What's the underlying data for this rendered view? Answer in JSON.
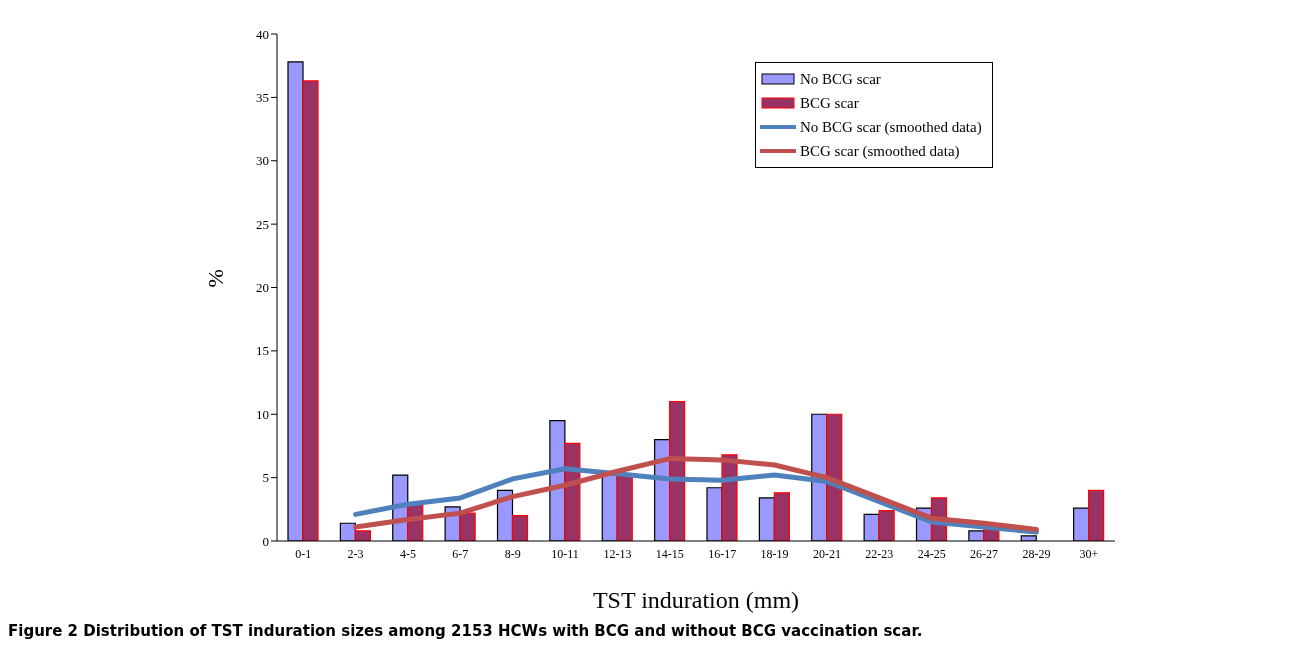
{
  "chart_data": {
    "type": "bar",
    "xlabel": "TST induration (mm)",
    "ylabel": "%",
    "categories": [
      "0-1",
      "2-3",
      "4-5",
      "6-7",
      "8-9",
      "10-11",
      "12-13",
      "14-15",
      "16-17",
      "18-19",
      "20-21",
      "22-23",
      "24-25",
      "26-27",
      "28-29",
      "30+"
    ],
    "series": [
      {
        "name": "No BCG scar",
        "color": "#9999ff",
        "values": [
          37.8,
          1.4,
          5.2,
          2.7,
          4.0,
          9.5,
          5.3,
          8.0,
          4.2,
          3.4,
          10.0,
          2.1,
          2.6,
          0.8,
          0.4,
          2.6
        ]
      },
      {
        "name": "BCG scar",
        "color": "#993366",
        "values": [
          36.3,
          0.8,
          2.9,
          2.2,
          2.0,
          7.7,
          5.1,
          11.0,
          6.8,
          3.8,
          10.0,
          2.4,
          3.4,
          0.9,
          null,
          4.0
        ]
      },
      {
        "name": "No BCG scar (smoothed data)",
        "type": "line",
        "color": "#4f81bd",
        "values": [
          null,
          2.1,
          2.9,
          3.4,
          4.9,
          5.7,
          5.3,
          4.9,
          4.8,
          5.2,
          4.7,
          3.1,
          1.5,
          1.1,
          0.7,
          null
        ]
      },
      {
        "name": "BCG scar (smoothed data)",
        "type": "line",
        "color": "#c0504d",
        "values": [
          null,
          1.1,
          1.7,
          2.2,
          3.5,
          4.4,
          5.5,
          6.5,
          6.4,
          6.0,
          5.0,
          3.4,
          1.8,
          1.4,
          0.9,
          null
        ]
      }
    ],
    "ylim": [
      0,
      40
    ],
    "yticks": [
      0,
      5,
      10,
      15,
      20,
      25,
      30,
      35,
      40
    ],
    "grid": false,
    "legend": "top right",
    "marker": "none",
    "line_style": "solid",
    "annotations": [
      "Figure 2 Distribution of TST induration sizes among 2153 HCWs with BCG and without BCG vaccination scar."
    ]
  }
}
